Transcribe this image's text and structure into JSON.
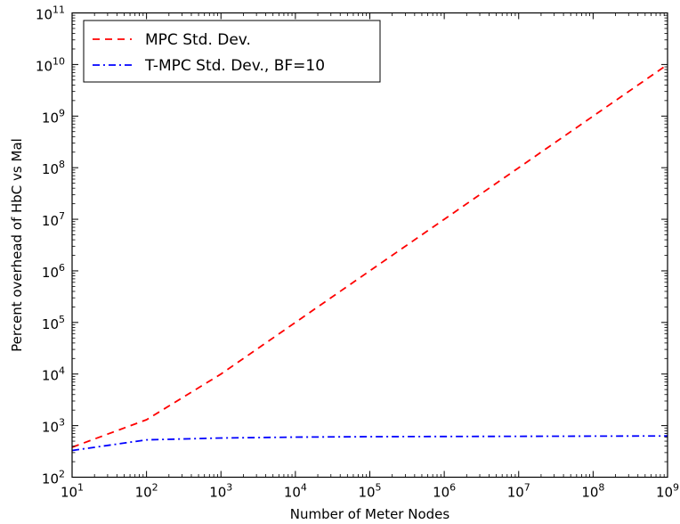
{
  "chart_data": {
    "type": "line",
    "x_scale": "log",
    "y_scale": "log",
    "xlabel": "Number of Meter Nodes",
    "ylabel": "Percent overhead of HbC vs Mal",
    "xlim": [
      10,
      1000000000
    ],
    "ylim": [
      100,
      100000000000
    ],
    "x_ticks": [
      {
        "value": 10,
        "base": "10",
        "exp": "1"
      },
      {
        "value": 100,
        "base": "10",
        "exp": "2"
      },
      {
        "value": 1000,
        "base": "10",
        "exp": "3"
      },
      {
        "value": 10000,
        "base": "10",
        "exp": "4"
      },
      {
        "value": 100000,
        "base": "10",
        "exp": "5"
      },
      {
        "value": 1000000,
        "base": "10",
        "exp": "6"
      },
      {
        "value": 10000000,
        "base": "10",
        "exp": "7"
      },
      {
        "value": 100000000,
        "base": "10",
        "exp": "8"
      },
      {
        "value": 1000000000,
        "base": "10",
        "exp": "9"
      }
    ],
    "y_ticks": [
      {
        "value": 100,
        "base": "10",
        "exp": "2"
      },
      {
        "value": 1000,
        "base": "10",
        "exp": "3"
      },
      {
        "value": 10000,
        "base": "10",
        "exp": "4"
      },
      {
        "value": 100000,
        "base": "10",
        "exp": "5"
      },
      {
        "value": 1000000,
        "base": "10",
        "exp": "6"
      },
      {
        "value": 10000000,
        "base": "10",
        "exp": "7"
      },
      {
        "value": 100000000,
        "base": "10",
        "exp": "8"
      },
      {
        "value": 1000000000,
        "base": "10",
        "exp": "9"
      },
      {
        "value": 10000000000,
        "base": "10",
        "exp": "10"
      },
      {
        "value": 100000000000,
        "base": "10",
        "exp": "11"
      }
    ],
    "legend_position": "top-left",
    "grid": false,
    "series": [
      {
        "name": "MPC Std. Dev.",
        "color": "#ff0000",
        "line_style": "dashed",
        "x": [
          10,
          100,
          1000,
          10000,
          100000,
          1000000,
          10000000,
          100000000,
          1000000000
        ],
        "y": [
          380,
          1300,
          10000,
          100000,
          1000000,
          10000000,
          100000000,
          1000000000,
          10000000000
        ]
      },
      {
        "name": "T-MPC Std. Dev., BF=10",
        "color": "#0000ff",
        "line_style": "dash-dot",
        "x": [
          10,
          100,
          1000,
          10000,
          100000,
          1000000,
          10000000,
          100000000,
          1000000000
        ],
        "y": [
          330,
          530,
          575,
          600,
          610,
          615,
          620,
          625,
          630
        ]
      }
    ]
  }
}
